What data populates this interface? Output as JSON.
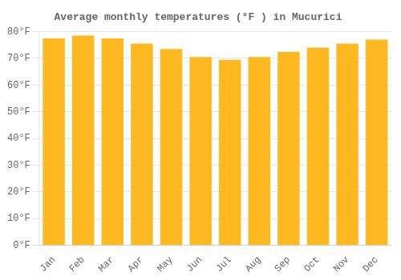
{
  "chart_data": {
    "type": "bar",
    "title": "Average monthly temperatures (°F ) in Mucurici",
    "categories": [
      "Jan",
      "Feb",
      "Mar",
      "Apr",
      "May",
      "Jun",
      "Jul",
      "Aug",
      "Sep",
      "Oct",
      "Nov",
      "Dec"
    ],
    "values": [
      77.5,
      78.5,
      77.5,
      75.5,
      73.5,
      70.5,
      69.5,
      70.5,
      72.5,
      74.0,
      75.5,
      77.0
    ],
    "color": "#FFB820",
    "ylim": [
      0,
      80
    ],
    "yticks": [
      {
        "value": 0,
        "label": "0°F"
      },
      {
        "value": 10,
        "label": "10°F"
      },
      {
        "value": 20,
        "label": "20°F"
      },
      {
        "value": 30,
        "label": "30°F"
      },
      {
        "value": 40,
        "label": "40°F"
      },
      {
        "value": 50,
        "label": "50°F"
      },
      {
        "value": 60,
        "label": "60°F"
      },
      {
        "value": 70,
        "label": "70°F"
      },
      {
        "value": 80,
        "label": "80°F"
      }
    ],
    "grid": true
  }
}
